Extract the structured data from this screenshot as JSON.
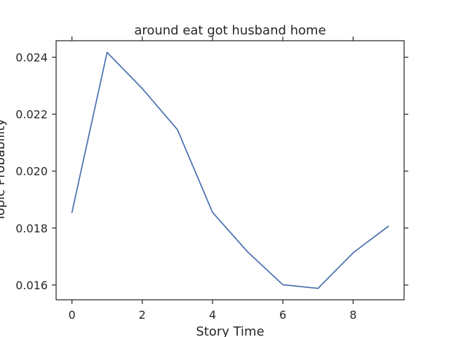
{
  "chart_data": {
    "type": "line",
    "title": "around eat got husband home",
    "xlabel": "Story Time",
    "ylabel": "Topic Probability",
    "xlim": [
      -0.45,
      9.45
    ],
    "ylim": [
      0.01548,
      0.02458
    ],
    "x_ticks": [
      0,
      2,
      4,
      6,
      8
    ],
    "x_tick_labels": [
      "0",
      "2",
      "4",
      "6",
      "8"
    ],
    "y_ticks": [
      0.016,
      0.018,
      0.02,
      0.022,
      0.024
    ],
    "y_tick_labels": [
      "0.016",
      "0.018",
      "0.020",
      "0.022",
      "0.024"
    ],
    "grid": false,
    "series": [
      {
        "color": "#4c72b0",
        "x": [
          0,
          1,
          2,
          3,
          4,
          5,
          6,
          7,
          8,
          9
        ],
        "y": [
          0.01855,
          0.02417,
          0.0229,
          0.02146,
          0.01855,
          0.01716,
          0.01601,
          0.01588,
          0.01713,
          0.01806
        ]
      }
    ]
  }
}
